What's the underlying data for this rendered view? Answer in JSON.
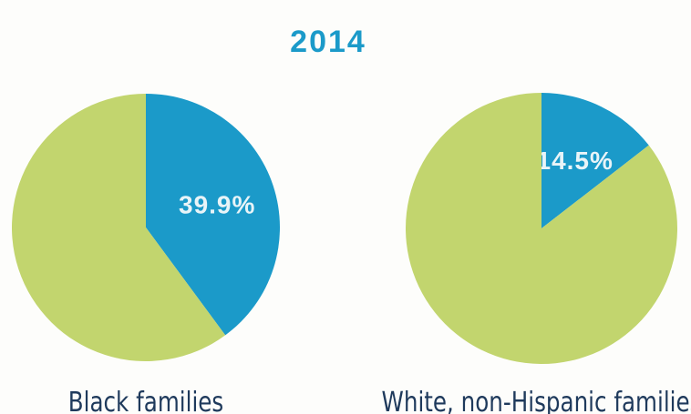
{
  "title": "2014",
  "chart_data": [
    {
      "type": "pie",
      "title": "Black families",
      "values": [
        39.9,
        60.1
      ],
      "value_labels": [
        "39.9%",
        null
      ],
      "colors": [
        "#1b9ac9",
        "#c2d56e"
      ]
    },
    {
      "type": "pie",
      "title": "White, non-Hispanic families",
      "values": [
        14.5,
        85.5
      ],
      "value_labels": [
        "14.5%",
        null
      ],
      "colors": [
        "#1b9ac9",
        "#c2d56e"
      ]
    }
  ]
}
